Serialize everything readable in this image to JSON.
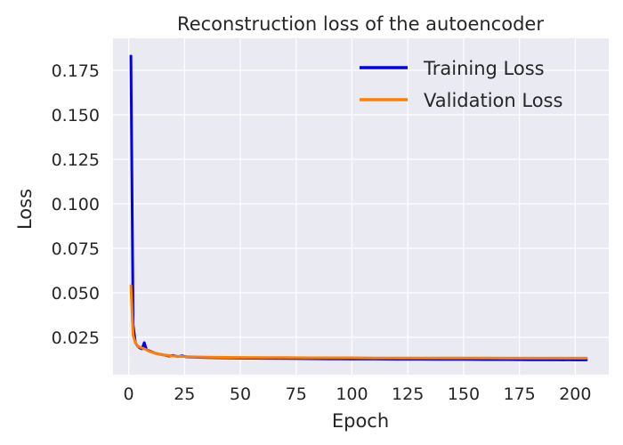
{
  "chart_data": {
    "type": "line",
    "title": "Reconstruction loss of the autoencoder",
    "xlabel": "Epoch",
    "ylabel": "Loss",
    "xlim": [
      -7,
      215
    ],
    "ylim": [
      0.004,
      0.193
    ],
    "xticks": [
      0,
      25,
      50,
      75,
      100,
      125,
      150,
      175,
      200
    ],
    "xtick_labels": [
      "0",
      "25",
      "50",
      "75",
      "100",
      "125",
      "150",
      "175",
      "200"
    ],
    "yticks": [
      0.025,
      0.05,
      0.075,
      0.1,
      0.125,
      0.15,
      0.175
    ],
    "ytick_labels": [
      "0.025",
      "0.050",
      "0.075",
      "0.100",
      "0.125",
      "0.150",
      "0.175"
    ],
    "grid": true,
    "legend_position": "top-right",
    "series": [
      {
        "name": "Training Loss",
        "color": "#0000ee",
        "x": [
          1,
          2,
          3,
          4,
          5,
          6,
          7,
          8,
          9,
          10,
          12,
          14,
          16,
          18,
          20,
          22,
          24,
          26,
          30,
          35,
          40,
          50,
          60,
          70,
          80,
          90,
          100,
          110,
          120,
          130,
          140,
          150,
          160,
          170,
          180,
          190,
          200,
          205
        ],
        "y": [
          0.183,
          0.032,
          0.022,
          0.02,
          0.019,
          0.0185,
          0.022,
          0.018,
          0.0175,
          0.017,
          0.016,
          0.0155,
          0.015,
          0.0145,
          0.0148,
          0.0142,
          0.0146,
          0.014,
          0.0138,
          0.0136,
          0.0135,
          0.0133,
          0.0132,
          0.0131,
          0.013,
          0.0129,
          0.0128,
          0.0128,
          0.0127,
          0.0127,
          0.0126,
          0.0126,
          0.0125,
          0.0125,
          0.0124,
          0.0124,
          0.0123,
          0.0123
        ]
      },
      {
        "name": "Validation Loss",
        "color": "#ff8000",
        "x": [
          1,
          2,
          3,
          4,
          5,
          6,
          7,
          8,
          9,
          10,
          12,
          14,
          16,
          18,
          20,
          22,
          25,
          30,
          35,
          40,
          50,
          60,
          70,
          80,
          90,
          100,
          110,
          120,
          130,
          140,
          150,
          160,
          170,
          180,
          190,
          200,
          205
        ],
        "y": [
          0.054,
          0.026,
          0.022,
          0.02,
          0.0195,
          0.019,
          0.0185,
          0.018,
          0.0172,
          0.0168,
          0.016,
          0.0155,
          0.015,
          0.0148,
          0.0145,
          0.0143,
          0.0142,
          0.014,
          0.0139,
          0.0138,
          0.0137,
          0.0136,
          0.0136,
          0.0135,
          0.0135,
          0.0135,
          0.0134,
          0.0134,
          0.0134,
          0.0134,
          0.0134,
          0.0134,
          0.0133,
          0.0133,
          0.0133,
          0.0133,
          0.0133
        ]
      }
    ]
  }
}
